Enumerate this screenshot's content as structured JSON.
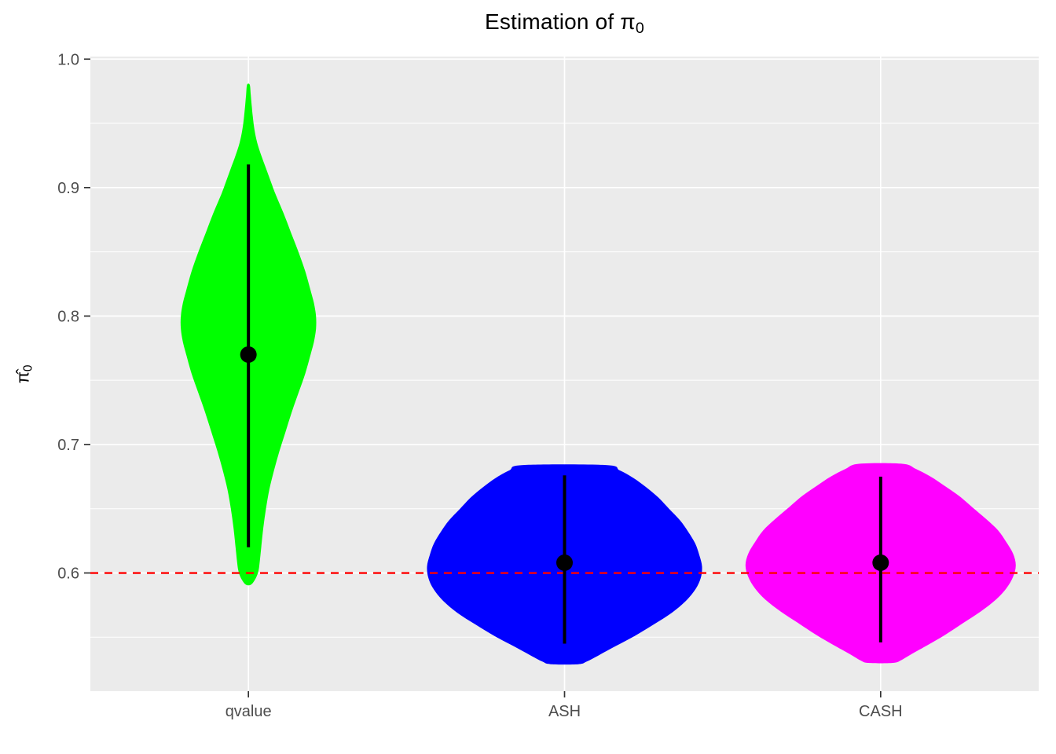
{
  "title": {
    "prefix": "Estimation of ",
    "symbol": "π",
    "subscript": "0"
  },
  "y_axis_label": {
    "symbol": "π̂",
    "subscript": "0"
  },
  "chart_data": {
    "type": "violin",
    "title": "Estimation of π0",
    "ylabel": "π̂0",
    "xlabel": "",
    "categories": [
      "qvalue",
      "ASH",
      "CASH"
    ],
    "ylim": [
      0.508,
      1.002
    ],
    "major_yticks": [
      0.6,
      0.7,
      0.8,
      0.9,
      1.0
    ],
    "ytick_labels": [
      "0.6",
      "0.7",
      "0.8",
      "0.9",
      "1.0"
    ],
    "minor_yticks": [
      0.55,
      0.65,
      0.75,
      0.85,
      0.95
    ],
    "panel_background": "#EBEBEB",
    "grid_color": "#FFFFFF",
    "tick_color": "#333333",
    "tick_label_color": "#4D4D4D",
    "reference_line": {
      "y": 0.6,
      "color": "#FF0000",
      "style": "dashed"
    },
    "legend": "none",
    "series": [
      {
        "name": "qvalue",
        "color": "#00FF00",
        "median": 0.77,
        "interval_low": 0.62,
        "interval_high": 0.918,
        "violin_min": 0.591,
        "violin_max": 0.98,
        "max_halfwidth": 86,
        "profile": [
          [
            0.98,
            0.02
          ],
          [
            0.972,
            0.035
          ],
          [
            0.963,
            0.05
          ],
          [
            0.955,
            0.065
          ],
          [
            0.945,
            0.09
          ],
          [
            0.935,
            0.13
          ],
          [
            0.925,
            0.19
          ],
          [
            0.915,
            0.26
          ],
          [
            0.905,
            0.33
          ],
          [
            0.895,
            0.4
          ],
          [
            0.88,
            0.52
          ],
          [
            0.865,
            0.63
          ],
          [
            0.85,
            0.74
          ],
          [
            0.835,
            0.84
          ],
          [
            0.82,
            0.92
          ],
          [
            0.81,
            0.97
          ],
          [
            0.8,
            1.0
          ],
          [
            0.79,
            1.0
          ],
          [
            0.78,
            0.97
          ],
          [
            0.77,
            0.92
          ],
          [
            0.755,
            0.84
          ],
          [
            0.74,
            0.74
          ],
          [
            0.725,
            0.64
          ],
          [
            0.71,
            0.55
          ],
          [
            0.695,
            0.46
          ],
          [
            0.68,
            0.38
          ],
          [
            0.665,
            0.31
          ],
          [
            0.65,
            0.26
          ],
          [
            0.635,
            0.22
          ],
          [
            0.62,
            0.19
          ],
          [
            0.61,
            0.17
          ],
          [
            0.602,
            0.15
          ],
          [
            0.596,
            0.11
          ],
          [
            0.591,
            0.04
          ]
        ]
      },
      {
        "name": "ASH",
        "color": "#0000FF",
        "median": 0.608,
        "interval_low": 0.545,
        "interval_high": 0.676,
        "violin_min": 0.529,
        "violin_max": 0.684,
        "max_halfwidth": 175,
        "profile": [
          [
            0.684,
            0.3
          ],
          [
            0.68,
            0.4
          ],
          [
            0.674,
            0.5
          ],
          [
            0.667,
            0.59
          ],
          [
            0.659,
            0.68
          ],
          [
            0.65,
            0.76
          ],
          [
            0.641,
            0.84
          ],
          [
            0.632,
            0.9
          ],
          [
            0.623,
            0.95
          ],
          [
            0.614,
            0.98
          ],
          [
            0.605,
            1.0
          ],
          [
            0.596,
            0.99
          ],
          [
            0.587,
            0.95
          ],
          [
            0.578,
            0.88
          ],
          [
            0.569,
            0.78
          ],
          [
            0.56,
            0.65
          ],
          [
            0.551,
            0.51
          ],
          [
            0.543,
            0.37
          ],
          [
            0.536,
            0.25
          ],
          [
            0.531,
            0.16
          ],
          [
            0.529,
            0.1
          ]
        ]
      },
      {
        "name": "CASH",
        "color": "#FF00FF",
        "median": 0.608,
        "interval_low": 0.546,
        "interval_high": 0.675,
        "violin_min": 0.53,
        "violin_max": 0.685,
        "max_halfwidth": 172,
        "profile": [
          [
            0.685,
            0.16
          ],
          [
            0.681,
            0.26
          ],
          [
            0.675,
            0.37
          ],
          [
            0.668,
            0.47
          ],
          [
            0.66,
            0.58
          ],
          [
            0.651,
            0.68
          ],
          [
            0.642,
            0.78
          ],
          [
            0.633,
            0.87
          ],
          [
            0.624,
            0.93
          ],
          [
            0.615,
            0.98
          ],
          [
            0.606,
            1.0
          ],
          [
            0.597,
            0.98
          ],
          [
            0.588,
            0.93
          ],
          [
            0.579,
            0.85
          ],
          [
            0.57,
            0.74
          ],
          [
            0.561,
            0.61
          ],
          [
            0.552,
            0.48
          ],
          [
            0.544,
            0.35
          ],
          [
            0.537,
            0.23
          ],
          [
            0.532,
            0.15
          ],
          [
            0.53,
            0.09
          ]
        ]
      }
    ]
  }
}
